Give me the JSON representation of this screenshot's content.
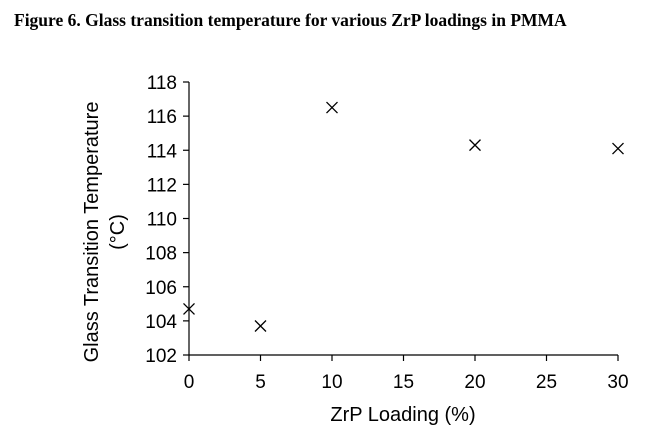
{
  "figure_title": "Figure 6. Glass transition temperature for various ZrP loadings in PMMA",
  "chart_data": {
    "type": "scatter",
    "title": "",
    "xlabel": "ZrP Loading (%)",
    "ylabel_lines": [
      "Glass Transition Temperature",
      "(°C)"
    ],
    "xlim": [
      0,
      30
    ],
    "ylim": [
      102,
      118
    ],
    "x_ticks": [
      0,
      5,
      10,
      15,
      20,
      25,
      30
    ],
    "y_ticks": [
      102,
      104,
      106,
      108,
      110,
      112,
      114,
      116,
      118
    ],
    "marker": "x",
    "grid": false,
    "points": [
      {
        "x": 0,
        "y": 104.7
      },
      {
        "x": 5,
        "y": 103.7
      },
      {
        "x": 10,
        "y": 116.5
      },
      {
        "x": 20,
        "y": 114.3
      },
      {
        "x": 30,
        "y": 114.1
      }
    ]
  }
}
